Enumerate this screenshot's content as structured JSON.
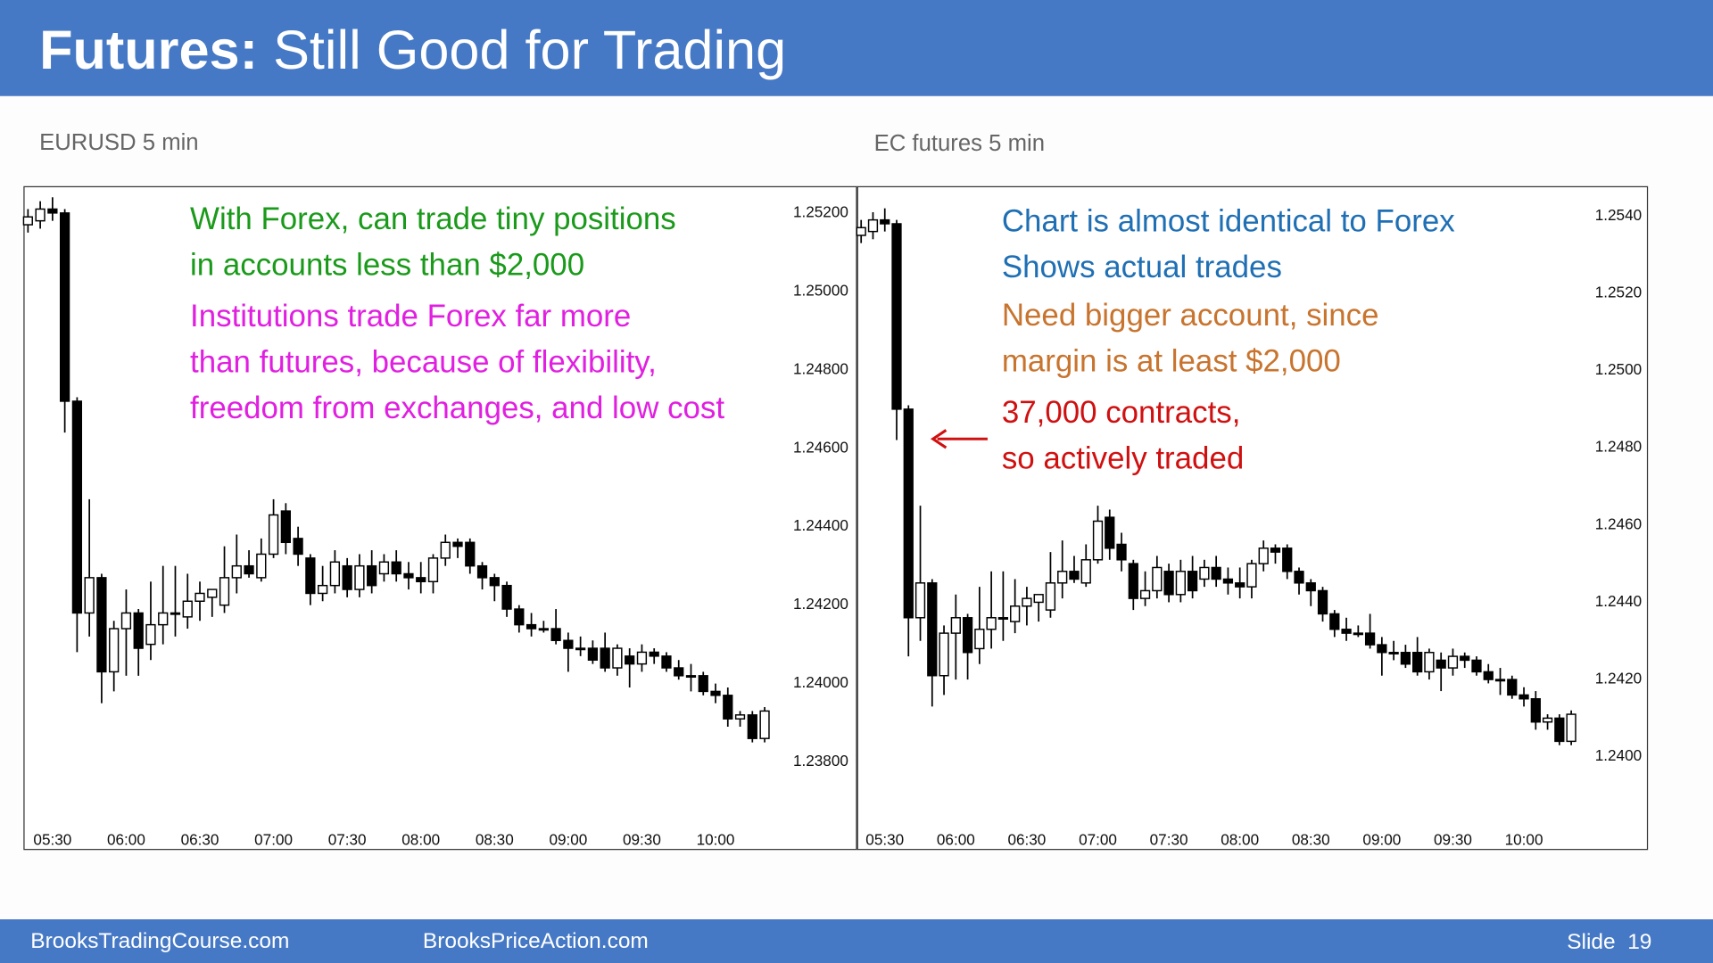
{
  "header": {
    "title_bold": "Futures:",
    "title": "Still Good for Trading"
  },
  "footer": {
    "left": "BrooksTradingCourse.com",
    "middle": "BrooksPriceAction.com",
    "slide": "Slide  19"
  },
  "chart_data": [
    {
      "type": "candlestick",
      "title": "EURUSD 5 min",
      "up_color": "#ffffff",
      "down_color": "#000000",
      "x": [
        320,
        325,
        330,
        335,
        340,
        345,
        350,
        355,
        360,
        365,
        370,
        375,
        380,
        385,
        390,
        395,
        400,
        405,
        410,
        415,
        420,
        425,
        430,
        435,
        440,
        445,
        450,
        455,
        460,
        465,
        470,
        475,
        480,
        485,
        490,
        495,
        500,
        505,
        510,
        515,
        520,
        525,
        530,
        535,
        540,
        545,
        550,
        555,
        560,
        565,
        570,
        575,
        580,
        585,
        590,
        595,
        600,
        605,
        610,
        615,
        620
      ],
      "open": [
        1.2517,
        1.2518,
        1.2521,
        1.252,
        1.2472,
        1.2418,
        1.2427,
        1.2403,
        1.2414,
        1.2418,
        1.241,
        1.2415,
        1.2418,
        1.2417,
        1.2421,
        1.2422,
        1.242,
        1.2427,
        1.243,
        1.2427,
        1.2433,
        1.2444,
        1.2437,
        1.2432,
        1.2423,
        1.2425,
        1.243,
        1.2424,
        1.243,
        1.2428,
        1.2431,
        1.2428,
        1.2427,
        1.2426,
        1.2432,
        1.2436,
        1.2436,
        1.243,
        1.2427,
        1.2425,
        1.2419,
        1.2415,
        1.2414,
        1.2414,
        1.2411,
        1.2409,
        1.2409,
        1.2409,
        1.2404,
        1.2407,
        1.2405,
        1.2408,
        1.2407,
        1.2404,
        1.2402,
        1.2402,
        1.2398,
        1.2397,
        1.2391,
        1.2392,
        1.2386
      ],
      "high": [
        1.2521,
        1.2523,
        1.2524,
        1.2521,
        1.2473,
        1.2447,
        1.2428,
        1.2416,
        1.2424,
        1.2419,
        1.2426,
        1.243,
        1.243,
        1.2428,
        1.2426,
        1.2424,
        1.2435,
        1.2438,
        1.2434,
        1.2437,
        1.2447,
        1.2446,
        1.244,
        1.2433,
        1.243,
        1.2434,
        1.2432,
        1.2433,
        1.2434,
        1.2433,
        1.2434,
        1.2431,
        1.2431,
        1.2433,
        1.2438,
        1.2437,
        1.2437,
        1.2431,
        1.2428,
        1.2426,
        1.242,
        1.2418,
        1.2416,
        1.2419,
        1.2413,
        1.2412,
        1.2411,
        1.2413,
        1.241,
        1.2409,
        1.241,
        1.2409,
        1.2408,
        1.2406,
        1.2405,
        1.2403,
        1.24,
        1.2399,
        1.2393,
        1.2393,
        1.2394
      ],
      "low": [
        1.2515,
        1.2516,
        1.2518,
        1.2464,
        1.2408,
        1.2412,
        1.2395,
        1.2398,
        1.2402,
        1.2402,
        1.2406,
        1.241,
        1.2412,
        1.2414,
        1.2416,
        1.2417,
        1.2418,
        1.2423,
        1.2427,
        1.2426,
        1.2432,
        1.2433,
        1.243,
        1.242,
        1.2421,
        1.2423,
        1.2422,
        1.2422,
        1.2423,
        1.2426,
        1.2426,
        1.2424,
        1.2423,
        1.2423,
        1.243,
        1.2432,
        1.2428,
        1.2424,
        1.2421,
        1.2417,
        1.2413,
        1.2412,
        1.2413,
        1.241,
        1.2403,
        1.2407,
        1.2405,
        1.2403,
        1.2402,
        1.2399,
        1.2403,
        1.2405,
        1.2403,
        1.2401,
        1.2398,
        1.2397,
        1.2395,
        1.2389,
        1.2389,
        1.2385,
        1.2385
      ],
      "close": [
        1.2519,
        1.2521,
        1.252,
        1.2472,
        1.2418,
        1.2427,
        1.2403,
        1.2414,
        1.2418,
        1.2409,
        1.2415,
        1.2418,
        1.2418,
        1.2421,
        1.2423,
        1.2424,
        1.2427,
        1.243,
        1.2428,
        1.2433,
        1.2443,
        1.2436,
        1.2433,
        1.2423,
        1.2425,
        1.2431,
        1.2424,
        1.243,
        1.2425,
        1.2431,
        1.2428,
        1.2427,
        1.2426,
        1.2432,
        1.2436,
        1.2435,
        1.243,
        1.2427,
        1.2425,
        1.2419,
        1.2415,
        1.2414,
        1.2414,
        1.2411,
        1.2409,
        1.2409,
        1.2406,
        1.2404,
        1.2409,
        1.2405,
        1.2408,
        1.2407,
        1.2404,
        1.2402,
        1.2402,
        1.2398,
        1.2397,
        1.2391,
        1.2392,
        1.2386,
        1.2393
      ],
      "xlim": [
        318.4,
        657.4
      ],
      "xticks": [
        {
          "value": 330,
          "label": "05:30"
        },
        {
          "value": 360,
          "label": "06:00"
        },
        {
          "value": 390,
          "label": "06:30"
        },
        {
          "value": 420,
          "label": "07:00"
        },
        {
          "value": 450,
          "label": "07:30"
        },
        {
          "value": 480,
          "label": "08:00"
        },
        {
          "value": 510,
          "label": "08:30"
        },
        {
          "value": 540,
          "label": "09:00"
        },
        {
          "value": 570,
          "label": "09:30"
        },
        {
          "value": 600,
          "label": "10:00"
        }
      ],
      "ylim": [
        1.23577,
        1.25267
      ],
      "yticks": [
        {
          "value": 1.252,
          "label": "1.25200"
        },
        {
          "value": 1.25,
          "label": "1.25000"
        },
        {
          "value": 1.248,
          "label": "1.24800"
        },
        {
          "value": 1.246,
          "label": "1.24600"
        },
        {
          "value": 1.244,
          "label": "1.24400"
        },
        {
          "value": 1.242,
          "label": "1.24200"
        },
        {
          "value": 1.24,
          "label": "1.24000"
        },
        {
          "value": 1.238,
          "label": "1.23800"
        }
      ],
      "annotations": [
        {
          "color": "#1a9a1a",
          "lines": [
            "With Forex, can trade tiny positions",
            "in accounts less than $2,000"
          ]
        },
        {
          "color": "#e01fe0",
          "lines": [
            "Institutions trade Forex far more",
            "than futures, because of flexibility,",
            "freedom from exchanges, and low cost"
          ]
        }
      ]
    },
    {
      "type": "candlestick",
      "title": "EC futures 5 min",
      "up_color": "#ffffff",
      "down_color": "#000000",
      "x": [
        320,
        325,
        330,
        335,
        340,
        345,
        350,
        355,
        360,
        365,
        370,
        375,
        380,
        385,
        390,
        395,
        400,
        405,
        410,
        415,
        420,
        425,
        430,
        435,
        440,
        445,
        450,
        455,
        460,
        465,
        470,
        475,
        480,
        485,
        490,
        495,
        500,
        505,
        510,
        515,
        520,
        525,
        530,
        535,
        540,
        545,
        550,
        555,
        560,
        565,
        570,
        575,
        580,
        585,
        590,
        595,
        600,
        605,
        610,
        615,
        620
      ],
      "open": [
        1.2535,
        1.2536,
        1.2539,
        1.2538,
        1.249,
        1.2436,
        1.2445,
        1.2421,
        1.2432,
        1.2436,
        1.2428,
        1.2433,
        1.2436,
        1.2435,
        1.2439,
        1.244,
        1.2438,
        1.2445,
        1.2448,
        1.2445,
        1.2451,
        1.2462,
        1.2455,
        1.245,
        1.2441,
        1.2443,
        1.2448,
        1.2442,
        1.2448,
        1.2446,
        1.2449,
        1.2446,
        1.2445,
        1.2444,
        1.245,
        1.2454,
        1.2454,
        1.2448,
        1.2445,
        1.2443,
        1.2437,
        1.2433,
        1.2432,
        1.2432,
        1.2429,
        1.2427,
        1.2427,
        1.2427,
        1.2422,
        1.2425,
        1.2423,
        1.2426,
        1.2425,
        1.2422,
        1.242,
        1.242,
        1.2416,
        1.2415,
        1.2409,
        1.241,
        1.2404
      ],
      "high": [
        1.2539,
        1.2541,
        1.2542,
        1.2539,
        1.2491,
        1.2465,
        1.2446,
        1.2434,
        1.2442,
        1.2437,
        1.2444,
        1.2448,
        1.2448,
        1.2446,
        1.2444,
        1.2442,
        1.2453,
        1.2456,
        1.2452,
        1.2455,
        1.2465,
        1.2464,
        1.2458,
        1.2451,
        1.2448,
        1.2452,
        1.245,
        1.2451,
        1.2452,
        1.2451,
        1.2452,
        1.2449,
        1.2449,
        1.2451,
        1.2456,
        1.2455,
        1.2455,
        1.2449,
        1.2446,
        1.2444,
        1.2438,
        1.2436,
        1.2434,
        1.2437,
        1.2431,
        1.243,
        1.2429,
        1.2431,
        1.2428,
        1.2427,
        1.2428,
        1.2427,
        1.2426,
        1.2424,
        1.2423,
        1.2421,
        1.2418,
        1.2417,
        1.2411,
        1.2411,
        1.2412
      ],
      "low": [
        1.2533,
        1.2534,
        1.2536,
        1.2482,
        1.2426,
        1.243,
        1.2413,
        1.2416,
        1.242,
        1.242,
        1.2424,
        1.2428,
        1.243,
        1.2432,
        1.2434,
        1.2435,
        1.2436,
        1.2441,
        1.2445,
        1.2444,
        1.245,
        1.2451,
        1.2448,
        1.2438,
        1.2439,
        1.2441,
        1.244,
        1.244,
        1.2441,
        1.2444,
        1.2444,
        1.2442,
        1.2441,
        1.2441,
        1.2448,
        1.245,
        1.2446,
        1.2442,
        1.2439,
        1.2435,
        1.2431,
        1.243,
        1.2431,
        1.2428,
        1.2421,
        1.2425,
        1.2423,
        1.2421,
        1.242,
        1.2417,
        1.2421,
        1.2423,
        1.2421,
        1.2419,
        1.2416,
        1.2415,
        1.2413,
        1.2407,
        1.2407,
        1.2403,
        1.2403
      ],
      "close": [
        1.2537,
        1.2539,
        1.2538,
        1.249,
        1.2436,
        1.2445,
        1.2421,
        1.2432,
        1.2436,
        1.2427,
        1.2433,
        1.2436,
        1.2436,
        1.2439,
        1.2441,
        1.2442,
        1.2445,
        1.2448,
        1.2446,
        1.2451,
        1.2461,
        1.2454,
        1.2451,
        1.2441,
        1.2443,
        1.2449,
        1.2442,
        1.2448,
        1.2443,
        1.2449,
        1.2446,
        1.2445,
        1.2444,
        1.245,
        1.2454,
        1.2453,
        1.2448,
        1.2445,
        1.2443,
        1.2437,
        1.2433,
        1.2432,
        1.2432,
        1.2429,
        1.2427,
        1.2427,
        1.2424,
        1.2422,
        1.2427,
        1.2423,
        1.2426,
        1.2425,
        1.2422,
        1.242,
        1.242,
        1.2416,
        1.2415,
        1.2409,
        1.241,
        1.2404,
        1.2411
      ],
      "xlim": [
        318.5,
        652.2
      ],
      "xticks": [
        {
          "value": 330,
          "label": "05:30"
        },
        {
          "value": 360,
          "label": "06:00"
        },
        {
          "value": 390,
          "label": "06:30"
        },
        {
          "value": 420,
          "label": "07:00"
        },
        {
          "value": 450,
          "label": "07:30"
        },
        {
          "value": 480,
          "label": "08:00"
        },
        {
          "value": 510,
          "label": "08:30"
        },
        {
          "value": 540,
          "label": "09:00"
        },
        {
          "value": 570,
          "label": "09:30"
        },
        {
          "value": 600,
          "label": "10:00"
        }
      ],
      "ylim": [
        1.2376,
        1.25476
      ],
      "yticks": [
        {
          "value": 1.254,
          "label": "1.2540"
        },
        {
          "value": 1.252,
          "label": "1.2520"
        },
        {
          "value": 1.25,
          "label": "1.2500"
        },
        {
          "value": 1.248,
          "label": "1.2480"
        },
        {
          "value": 1.246,
          "label": "1.2460"
        },
        {
          "value": 1.244,
          "label": "1.2440"
        },
        {
          "value": 1.242,
          "label": "1.2420"
        },
        {
          "value": 1.24,
          "label": "1.2400"
        }
      ],
      "annotations": [
        {
          "color": "#1f6fb4",
          "lines": [
            "Chart is almost identical to Forex",
            "Shows actual trades"
          ]
        },
        {
          "color": "#c8742e",
          "lines": [
            "Need bigger account, since",
            "margin is at least $2,000"
          ]
        },
        {
          "color": "#d01010",
          "lines": [
            "37,000 contracts,",
            "so actively traded"
          ]
        }
      ]
    }
  ]
}
